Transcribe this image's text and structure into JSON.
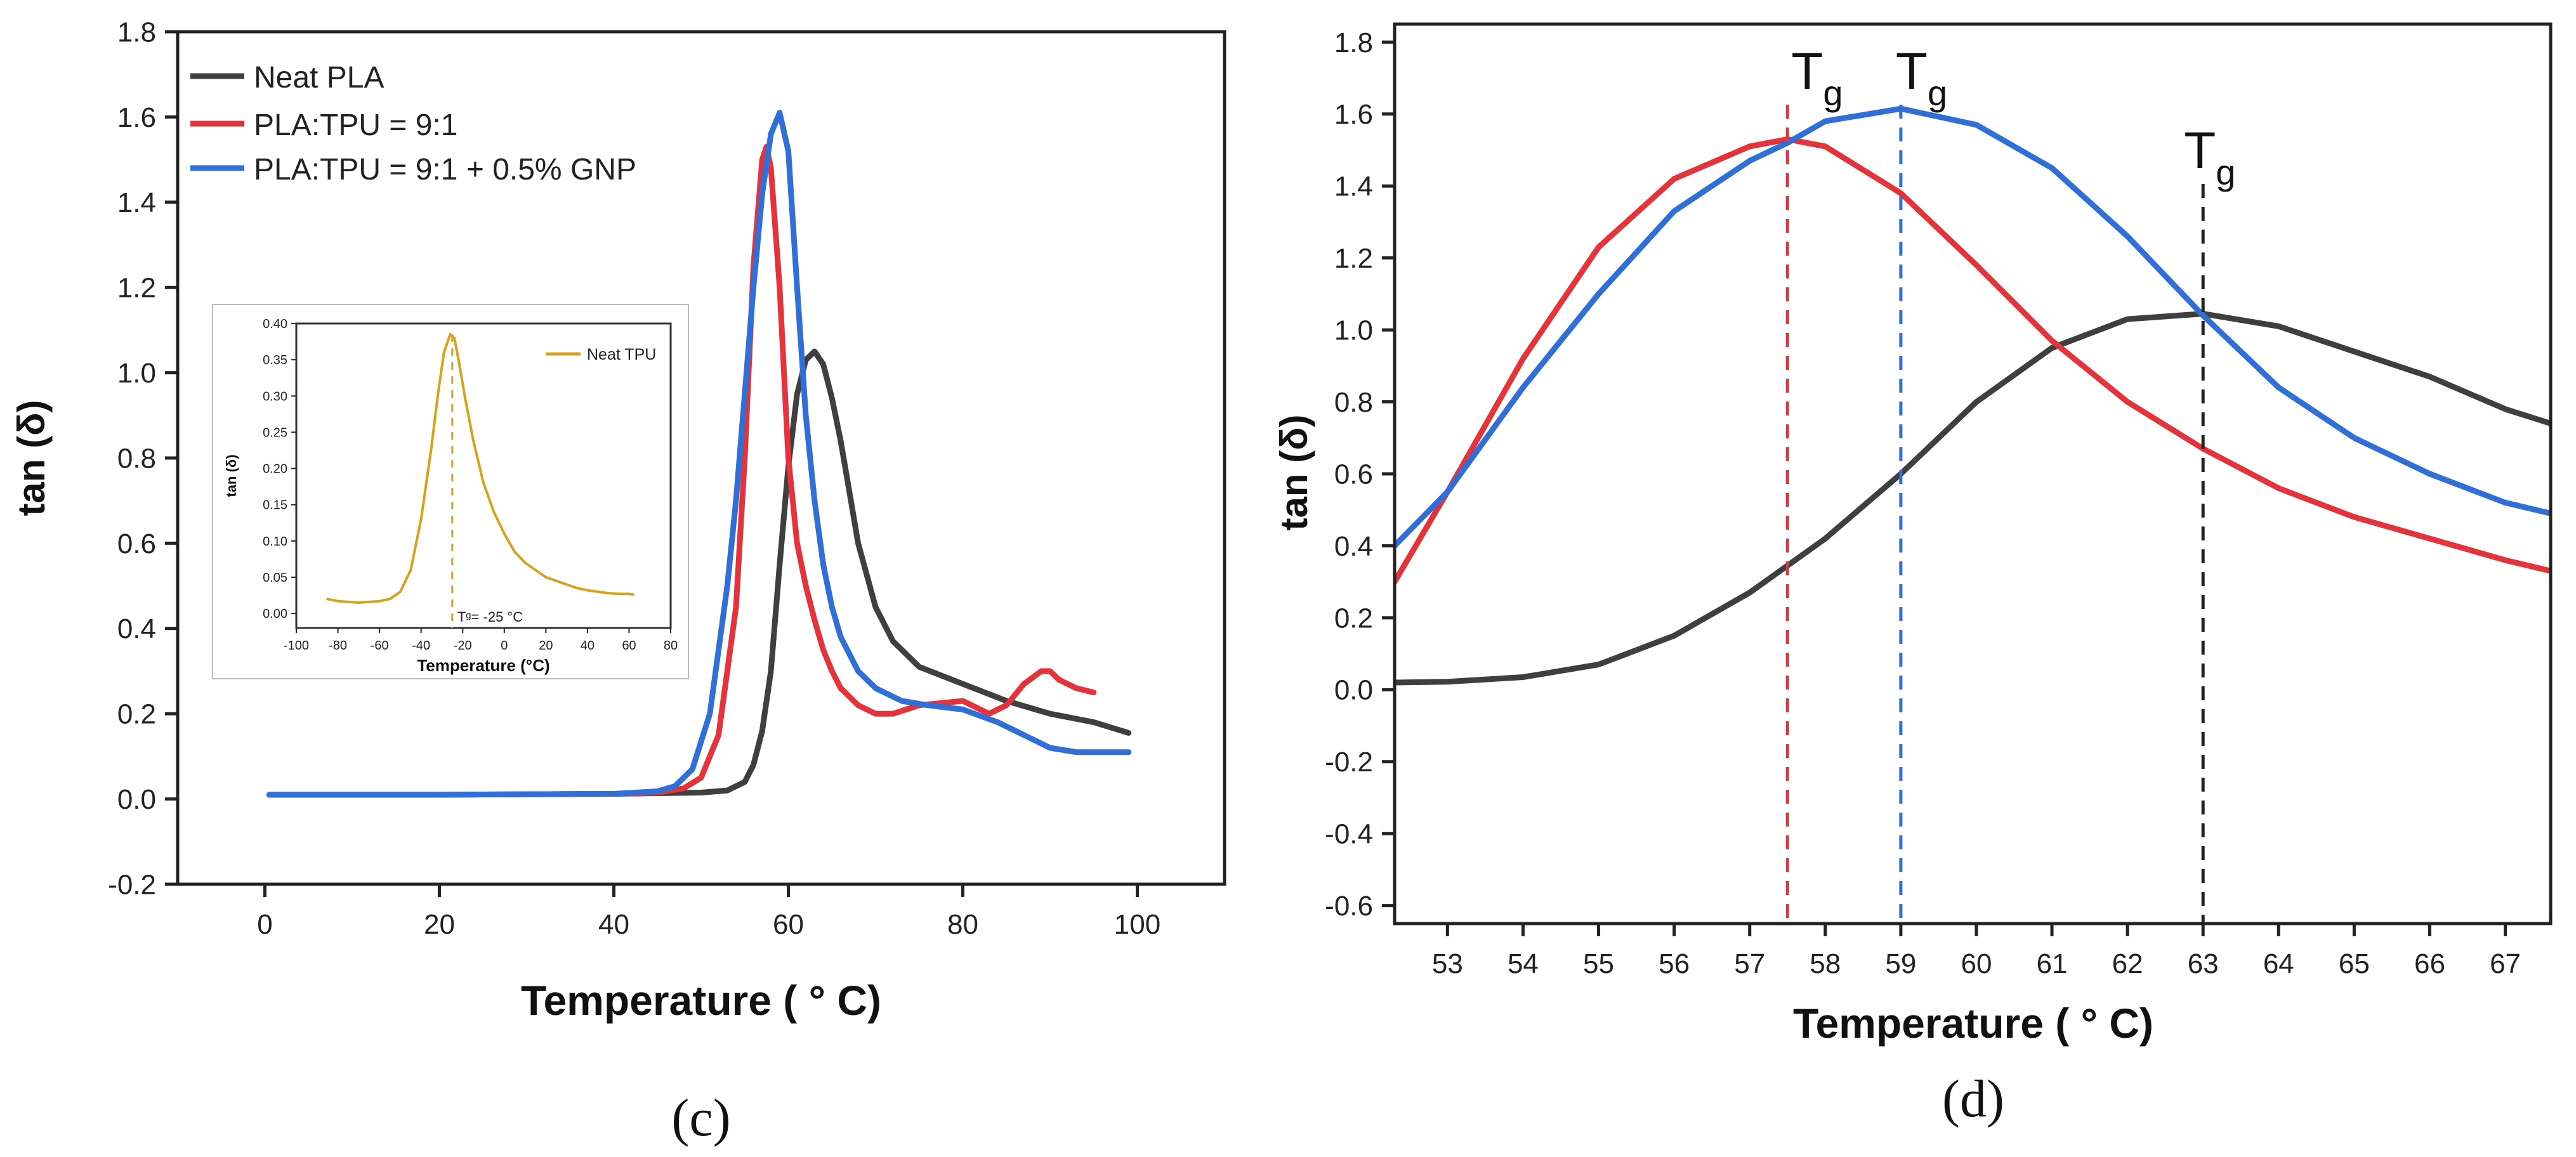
{
  "figure_labels": {
    "left": "(c)",
    "right": "(d)"
  },
  "chart_data": [
    {
      "type": "line",
      "panel": "c",
      "xlabel": "Temperature ( ° C)",
      "ylabel": "tan (δ)",
      "xlim": [
        -10,
        110
      ],
      "ylim": [
        -0.2,
        1.8
      ],
      "xticks": [
        0,
        20,
        40,
        60,
        80,
        100
      ],
      "yticks": [
        -0.2,
        0.0,
        0.2,
        0.4,
        0.6,
        0.8,
        1.0,
        1.2,
        1.4,
        1.6,
        1.8
      ],
      "grid": false,
      "legend": "top-left",
      "series": [
        {
          "name": "Neat PLA",
          "color": "#3f3f3f",
          "points": [
            [
              0.5,
              0.01
            ],
            [
              20,
              0.01
            ],
            [
              40,
              0.012
            ],
            [
              50,
              0.015
            ],
            [
              53,
              0.02
            ],
            [
              55,
              0.04
            ],
            [
              56,
              0.08
            ],
            [
              57,
              0.16
            ],
            [
              58,
              0.3
            ],
            [
              59,
              0.55
            ],
            [
              60,
              0.78
            ],
            [
              61,
              0.95
            ],
            [
              62,
              1.03
            ],
            [
              63,
              1.05
            ],
            [
              64,
              1.02
            ],
            [
              65,
              0.94
            ],
            [
              66,
              0.84
            ],
            [
              67,
              0.72
            ],
            [
              68,
              0.6
            ],
            [
              70,
              0.45
            ],
            [
              72,
              0.37
            ],
            [
              75,
              0.31
            ],
            [
              80,
              0.27
            ],
            [
              85,
              0.23
            ],
            [
              90,
              0.2
            ],
            [
              95,
              0.18
            ],
            [
              99,
              0.155
            ]
          ]
        },
        {
          "name": "PLA:TPU = 9:1",
          "color": "#e3333b",
          "points": [
            [
              0.5,
              0.01
            ],
            [
              20,
              0.01
            ],
            [
              40,
              0.012
            ],
            [
              45,
              0.015
            ],
            [
              48,
              0.025
            ],
            [
              50,
              0.05
            ],
            [
              52,
              0.15
            ],
            [
              54,
              0.45
            ],
            [
              55,
              0.8
            ],
            [
              56,
              1.25
            ],
            [
              57,
              1.5
            ],
            [
              57.5,
              1.53
            ],
            [
              58,
              1.48
            ],
            [
              59,
              1.2
            ],
            [
              60,
              0.8
            ],
            [
              61,
              0.6
            ],
            [
              62,
              0.5
            ],
            [
              63,
              0.42
            ],
            [
              64,
              0.35
            ],
            [
              65,
              0.3
            ],
            [
              66,
              0.26
            ],
            [
              68,
              0.22
            ],
            [
              70,
              0.2
            ],
            [
              72,
              0.2
            ],
            [
              75,
              0.22
            ],
            [
              80,
              0.23
            ],
            [
              83,
              0.2
            ],
            [
              85,
              0.22
            ],
            [
              87,
              0.27
            ],
            [
              89,
              0.3
            ],
            [
              90,
              0.3
            ],
            [
              91,
              0.28
            ],
            [
              93,
              0.26
            ],
            [
              95,
              0.25
            ]
          ]
        },
        {
          "name": "PLA:TPU = 9:1 + 0.5% GNP",
          "color": "#2f6fd6",
          "points": [
            [
              0.5,
              0.01
            ],
            [
              20,
              0.01
            ],
            [
              40,
              0.012
            ],
            [
              45,
              0.018
            ],
            [
              47,
              0.03
            ],
            [
              49,
              0.07
            ],
            [
              51,
              0.2
            ],
            [
              53,
              0.5
            ],
            [
              54,
              0.7
            ],
            [
              55,
              0.95
            ],
            [
              56,
              1.2
            ],
            [
              57,
              1.42
            ],
            [
              58,
              1.56
            ],
            [
              59,
              1.61
            ],
            [
              60,
              1.52
            ],
            [
              61,
              1.2
            ],
            [
              62,
              0.9
            ],
            [
              63,
              0.7
            ],
            [
              64,
              0.55
            ],
            [
              65,
              0.45
            ],
            [
              66,
              0.38
            ],
            [
              68,
              0.3
            ],
            [
              70,
              0.26
            ],
            [
              73,
              0.23
            ],
            [
              76,
              0.22
            ],
            [
              80,
              0.21
            ],
            [
              84,
              0.18
            ],
            [
              88,
              0.14
            ],
            [
              90,
              0.12
            ],
            [
              93,
              0.11
            ],
            [
              95,
              0.11
            ],
            [
              99,
              0.11
            ]
          ]
        }
      ],
      "inset": {
        "type": "line",
        "xlabel": "Temperature (°C)",
        "ylabel": "tan (δ)",
        "xlim": [
          -100,
          80
        ],
        "ylim": [
          -0.02,
          0.4
        ],
        "xticks": [
          -100,
          -80,
          -60,
          -40,
          -20,
          0,
          20,
          40,
          60,
          80
        ],
        "yticks": [
          0.0,
          0.05,
          0.1,
          0.15,
          0.2,
          0.25,
          0.3,
          0.35,
          0.4
        ],
        "legend": "Neat TPU",
        "annotation": "Tᵍ= -25 °C",
        "tg_marker": -25,
        "series": [
          {
            "name": "Neat TPU",
            "color": "#d6a21e",
            "points": [
              [
                -85,
                0.02
              ],
              [
                -80,
                0.017
              ],
              [
                -70,
                0.015
              ],
              [
                -60,
                0.017
              ],
              [
                -55,
                0.02
              ],
              [
                -50,
                0.03
              ],
              [
                -45,
                0.06
              ],
              [
                -40,
                0.13
              ],
              [
                -35,
                0.23
              ],
              [
                -32,
                0.3
              ],
              [
                -29,
                0.36
              ],
              [
                -26,
                0.385
              ],
              [
                -24,
                0.38
              ],
              [
                -22,
                0.35
              ],
              [
                -19,
                0.3
              ],
              [
                -15,
                0.24
              ],
              [
                -10,
                0.18
              ],
              [
                -5,
                0.14
              ],
              [
                0,
                0.11
              ],
              [
                5,
                0.085
              ],
              [
                10,
                0.07
              ],
              [
                15,
                0.06
              ],
              [
                20,
                0.05
              ],
              [
                25,
                0.045
              ],
              [
                30,
                0.04
              ],
              [
                35,
                0.035
              ],
              [
                40,
                0.032
              ],
              [
                45,
                0.03
              ],
              [
                50,
                0.028
              ],
              [
                55,
                0.027
              ],
              [
                60,
                0.027
              ],
              [
                62,
                0.026
              ]
            ]
          }
        ]
      }
    },
    {
      "type": "line",
      "panel": "d",
      "xlabel": "Temperature ( ° C)",
      "ylabel": "tan (δ)",
      "xlim": [
        52.3,
        67.6
      ],
      "ylim": [
        -0.65,
        1.85
      ],
      "xticks": [
        53,
        54,
        55,
        56,
        57,
        58,
        59,
        60,
        61,
        62,
        63,
        64,
        65,
        66,
        67
      ],
      "yticks": [
        -0.6,
        -0.4,
        -0.2,
        0.0,
        0.2,
        0.4,
        0.6,
        0.8,
        1.0,
        1.2,
        1.4,
        1.6,
        1.8
      ],
      "grid": false,
      "annotations": [
        {
          "label": "T",
          "sub": "g",
          "x": 57.5,
          "color": "#e3333b"
        },
        {
          "label": "T",
          "sub": "g",
          "x": 59.0,
          "color": "#2f6fd6"
        },
        {
          "label": "T",
          "sub": "g",
          "x": 63.0,
          "color": "#222222"
        }
      ],
      "series": [
        {
          "name": "Neat PLA",
          "color": "#3f3f3f",
          "points": [
            [
              52.3,
              0.02
            ],
            [
              53,
              0.022
            ],
            [
              54,
              0.035
            ],
            [
              55,
              0.07
            ],
            [
              56,
              0.15
            ],
            [
              57,
              0.27
            ],
            [
              58,
              0.42
            ],
            [
              59,
              0.6
            ],
            [
              60,
              0.8
            ],
            [
              61,
              0.95
            ],
            [
              62,
              1.03
            ],
            [
              63,
              1.045
            ],
            [
              64,
              1.01
            ],
            [
              65,
              0.94
            ],
            [
              66,
              0.87
            ],
            [
              67,
              0.78
            ],
            [
              67.6,
              0.74
            ]
          ]
        },
        {
          "name": "PLA:TPU = 9:1",
          "color": "#e3333b",
          "points": [
            [
              52.3,
              0.3
            ],
            [
              53,
              0.55
            ],
            [
              54,
              0.92
            ],
            [
              55,
              1.23
            ],
            [
              56,
              1.42
            ],
            [
              57,
              1.51
            ],
            [
              57.5,
              1.53
            ],
            [
              58,
              1.51
            ],
            [
              59,
              1.38
            ],
            [
              60,
              1.18
            ],
            [
              61,
              0.97
            ],
            [
              62,
              0.8
            ],
            [
              63,
              0.67
            ],
            [
              64,
              0.56
            ],
            [
              65,
              0.48
            ],
            [
              66,
              0.42
            ],
            [
              67,
              0.36
            ],
            [
              67.6,
              0.33
            ]
          ]
        },
        {
          "name": "PLA:TPU = 9:1 + 0.5% GNP",
          "color": "#2f6fd6",
          "points": [
            [
              52.3,
              0.4
            ],
            [
              53,
              0.55
            ],
            [
              54,
              0.84
            ],
            [
              55,
              1.1
            ],
            [
              56,
              1.33
            ],
            [
              57,
              1.47
            ],
            [
              57.5,
              1.52
            ],
            [
              58,
              1.58
            ],
            [
              59,
              1.615
            ],
            [
              60,
              1.57
            ],
            [
              61,
              1.45
            ],
            [
              62,
              1.26
            ],
            [
              63,
              1.04
            ],
            [
              64,
              0.84
            ],
            [
              65,
              0.7
            ],
            [
              66,
              0.6
            ],
            [
              67,
              0.52
            ],
            [
              67.6,
              0.49
            ]
          ]
        }
      ]
    }
  ]
}
